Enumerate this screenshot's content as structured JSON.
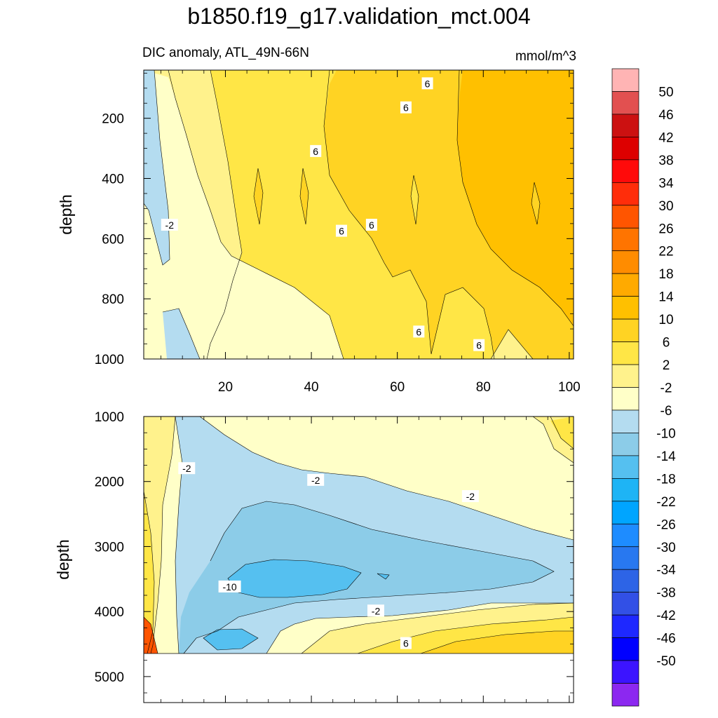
{
  "figure": {
    "title": "b1850.f19_g17.validation_mct.004",
    "subtitle_left": "DIC anomaly, ATL_49N-66N",
    "subtitle_right": "mmol/m^3"
  },
  "colors": {
    "land_fill": "#ffffff",
    "contour_line": "#000000"
  },
  "chart_data": [
    {
      "type": "heatmap",
      "panel": "upper",
      "title": "",
      "xlabel": "",
      "ylabel": "depth",
      "xlim": [
        1,
        101
      ],
      "ylim": [
        1000,
        0
      ],
      "xticks": [
        20,
        40,
        60,
        80,
        100
      ],
      "xticks_labeled": true,
      "yticks": [
        200,
        400,
        600,
        800,
        1000
      ],
      "y_top": 40,
      "contour_labels": [
        {
          "text": "6",
          "x": 67,
          "y": 85
        },
        {
          "text": "6",
          "x": 62,
          "y": 165
        },
        {
          "text": "6",
          "x": 41,
          "y": 310
        },
        {
          "text": "-2",
          "x": 7,
          "y": 555
        },
        {
          "text": "6",
          "x": 47,
          "y": 575
        },
        {
          "text": "6",
          "x": 54,
          "y": 555
        },
        {
          "text": "6",
          "x": 65,
          "y": 910
        },
        {
          "text": "6",
          "x": 79,
          "y": 955
        }
      ]
    },
    {
      "type": "heatmap",
      "panel": "lower",
      "title": "",
      "xlabel": "",
      "ylabel": "depth",
      "xlim": [
        1,
        101
      ],
      "ylim": [
        5400,
        1000
      ],
      "xticks": [
        20,
        40,
        60,
        80,
        100
      ],
      "xticks_labeled": false,
      "yticks": [
        1000,
        2000,
        3000,
        4000,
        5000
      ],
      "data_bottom_depth": 4650,
      "contour_labels": [
        {
          "text": "-2",
          "x": 11,
          "y": 1800
        },
        {
          "text": "-2",
          "x": 41,
          "y": 1980
        },
        {
          "text": "-2",
          "x": 77,
          "y": 2230
        },
        {
          "text": "-10",
          "x": 21,
          "y": 3620
        },
        {
          "text": "-2",
          "x": 55,
          "y": 3990
        },
        {
          "text": "6",
          "x": 62,
          "y": 4490
        }
      ]
    }
  ],
  "colorbar": {
    "labels": [
      "50",
      "46",
      "42",
      "38",
      "34",
      "30",
      "26",
      "22",
      "18",
      "14",
      "10",
      "6",
      "2",
      "-2",
      "-6",
      "-10",
      "-14",
      "-18",
      "-22",
      "-26",
      "-30",
      "-34",
      "-38",
      "-42",
      "-46",
      "-50"
    ],
    "colors_top_to_bottom": [
      "#ffb4b4",
      "#e25050",
      "#cc1111",
      "#dd0000",
      "#ff0a0a",
      "#ff2d0a",
      "#ff5500",
      "#ff7400",
      "#ff8c00",
      "#ffaa00",
      "#ffc000",
      "#ffd323",
      "#ffe646",
      "#fff28c",
      "#ffffc8",
      "#b4dcf0",
      "#8ccce8",
      "#55c0f0",
      "#1eb4f5",
      "#00a5ff",
      "#1e8cff",
      "#2878f0",
      "#2d64e6",
      "#3250e6",
      "#1e28ff",
      "#0000ff",
      "#3c14ff",
      "#8c28f0"
    ]
  }
}
